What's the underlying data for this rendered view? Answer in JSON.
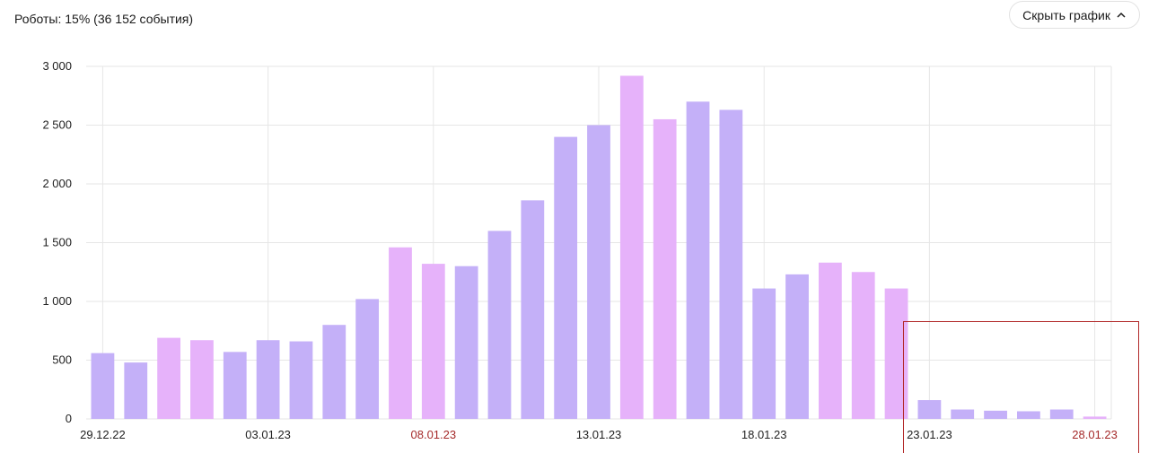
{
  "summary": {
    "text": "Роботы: 15% (36 152 события)"
  },
  "toggle": {
    "label": "Скрыть график",
    "icon": "chevron-up-icon"
  },
  "colors": {
    "weekday": "#c4b0f8",
    "weekend": "#e6b2fa",
    "grid": "#e6e6e6",
    "holiday_label": "#a52a2a",
    "label": "#222222",
    "highlight": "#b22a2a"
  },
  "chart_data": {
    "type": "bar",
    "ylim": [
      0,
      3000
    ],
    "yticks": [
      {
        "value": 0,
        "label": "0"
      },
      {
        "value": 500,
        "label": "500"
      },
      {
        "value": 1000,
        "label": "1 000"
      },
      {
        "value": 1500,
        "label": "1 500"
      },
      {
        "value": 2000,
        "label": "2 000"
      },
      {
        "value": 2500,
        "label": "2 500"
      },
      {
        "value": 3000,
        "label": "3 000"
      }
    ],
    "xticks": [
      {
        "index": 0,
        "label": "29.12.22",
        "holiday": false
      },
      {
        "index": 5,
        "label": "03.01.23",
        "holiday": false
      },
      {
        "index": 10,
        "label": "08.01.23",
        "holiday": true
      },
      {
        "index": 15,
        "label": "13.01.23",
        "holiday": false
      },
      {
        "index": 20,
        "label": "18.01.23",
        "holiday": false
      },
      {
        "index": 25,
        "label": "23.01.23",
        "holiday": false
      },
      {
        "index": 30,
        "label": "28.01.23",
        "holiday": true
      }
    ],
    "values": [
      560,
      480,
      690,
      670,
      570,
      670,
      660,
      800,
      1020,
      1460,
      1320,
      1300,
      1600,
      1860,
      2400,
      2500,
      2920,
      2550,
      2700,
      2630,
      1110,
      1230,
      1330,
      1250,
      1110,
      160,
      80,
      70,
      65,
      80,
      20
    ],
    "weekend": [
      false,
      false,
      true,
      true,
      false,
      false,
      false,
      false,
      false,
      true,
      true,
      false,
      false,
      false,
      false,
      false,
      true,
      true,
      false,
      false,
      false,
      false,
      true,
      true,
      true,
      false,
      false,
      false,
      false,
      false,
      true
    ]
  }
}
